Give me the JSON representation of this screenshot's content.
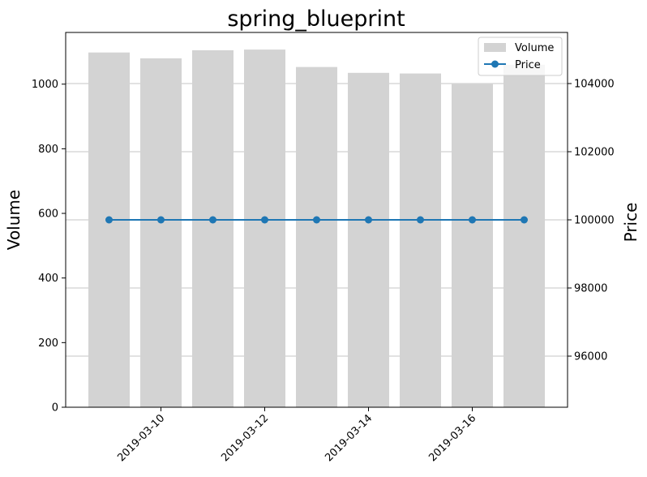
{
  "chart_data": {
    "type": "bar",
    "title": "spring_blueprint",
    "xlabel": "",
    "ylabel": "Volume",
    "y2label": "Price",
    "x": [
      "2019-03-09",
      "2019-03-10",
      "2019-03-11",
      "2019-03-12",
      "2019-03-13",
      "2019-03-14",
      "2019-03-15",
      "2019-03-16",
      "2019-03-17"
    ],
    "x_tick_labels": [
      "2019-03-10",
      "2019-03-12",
      "2019-03-14",
      "2019-03-16"
    ],
    "ylim": [
      0,
      1160
    ],
    "y2lim": [
      94500,
      105500
    ],
    "y_ticks": [
      0,
      200,
      400,
      600,
      800,
      1000
    ],
    "y2_ticks": [
      96000,
      98000,
      100000,
      102000,
      104000
    ],
    "grid": "horizontal lines at the price axis ticks",
    "legend": "top-right",
    "series": [
      {
        "name": "Volume",
        "type": "bar",
        "axis": "left",
        "color": "#d3d3d3",
        "values": [
          1098,
          1080,
          1105,
          1107,
          1053,
          1035,
          1033,
          1000,
          1060
        ]
      },
      {
        "name": "Price",
        "type": "line",
        "axis": "right",
        "color": "#1f77b4",
        "marker": "circle",
        "values": [
          100000,
          100000,
          100000,
          100000,
          100000,
          100000,
          100000,
          100000,
          100000
        ]
      }
    ]
  }
}
